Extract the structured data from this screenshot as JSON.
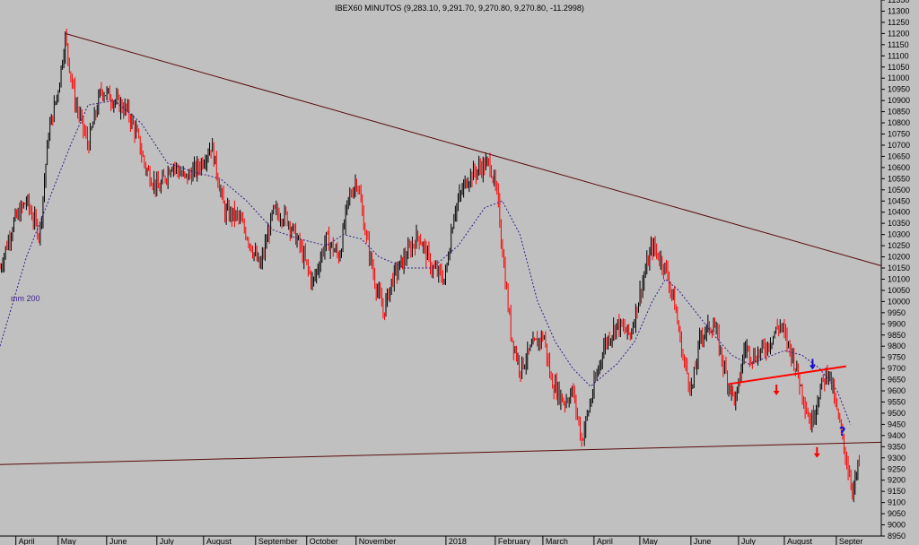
{
  "chart_data": {
    "type": "candlestick",
    "title": "IBEX60 MINUTOS (9,283.10, 9,291.70, 9,270.80, 9,270.80, -11.2998)",
    "ma_label": "mm 200",
    "y_ticks": [
      8950,
      9000,
      9050,
      9100,
      9150,
      9200,
      9250,
      9300,
      9350,
      9400,
      9450,
      9500,
      9550,
      9600,
      9650,
      9700,
      9750,
      9800,
      9850,
      9900,
      9950,
      10000,
      10050,
      10100,
      10150,
      10200,
      10250,
      10300,
      10350,
      10400,
      10450,
      10500,
      10550,
      10600,
      10650,
      10700,
      10750,
      10800,
      10850,
      10900,
      10950,
      11000,
      11050,
      11100,
      11150,
      11200,
      11250,
      11300,
      11350
    ],
    "ylim": [
      8950,
      11350
    ],
    "x_labels": [
      "April",
      "May",
      "June",
      "July",
      "August",
      "September",
      "October",
      "November",
      "2018",
      "February",
      "March",
      "April",
      "May",
      "June",
      "July",
      "August",
      "Septer"
    ],
    "x_positions": [
      0.018,
      0.066,
      0.121,
      0.178,
      0.231,
      0.29,
      0.348,
      0.404,
      0.506,
      0.562,
      0.616,
      0.674,
      0.726,
      0.784,
      0.838,
      0.89,
      0.949
    ],
    "price_path": [
      [
        0,
        10150
      ],
      [
        0.015,
        10350
      ],
      [
        0.03,
        10450
      ],
      [
        0.045,
        10300
      ],
      [
        0.055,
        10750
      ],
      [
        0.066,
        10950
      ],
      [
        0.074,
        11180
      ],
      [
        0.085,
        10900
      ],
      [
        0.1,
        10700
      ],
      [
        0.115,
        10950
      ],
      [
        0.13,
        10900
      ],
      [
        0.145,
        10850
      ],
      [
        0.155,
        10750
      ],
      [
        0.165,
        10600
      ],
      [
        0.18,
        10500
      ],
      [
        0.195,
        10620
      ],
      [
        0.21,
        10550
      ],
      [
        0.225,
        10600
      ],
      [
        0.24,
        10700
      ],
      [
        0.255,
        10400
      ],
      [
        0.27,
        10380
      ],
      [
        0.28,
        10300
      ],
      [
        0.295,
        10150
      ],
      [
        0.31,
        10400
      ],
      [
        0.325,
        10380
      ],
      [
        0.34,
        10250
      ],
      [
        0.355,
        10080
      ],
      [
        0.37,
        10280
      ],
      [
        0.385,
        10200
      ],
      [
        0.395,
        10450
      ],
      [
        0.405,
        10550
      ],
      [
        0.415,
        10300
      ],
      [
        0.425,
        10100
      ],
      [
        0.435,
        9950
      ],
      [
        0.445,
        10100
      ],
      [
        0.46,
        10200
      ],
      [
        0.475,
        10300
      ],
      [
        0.49,
        10150
      ],
      [
        0.505,
        10100
      ],
      [
        0.515,
        10400
      ],
      [
        0.53,
        10550
      ],
      [
        0.545,
        10600
      ],
      [
        0.556,
        10620
      ],
      [
        0.565,
        10450
      ],
      [
        0.572,
        10150
      ],
      [
        0.58,
        9850
      ],
      [
        0.59,
        9700
      ],
      [
        0.605,
        9800
      ],
      [
        0.617,
        9850
      ],
      [
        0.625,
        9650
      ],
      [
        0.64,
        9550
      ],
      [
        0.65,
        9600
      ],
      [
        0.66,
        9380
      ],
      [
        0.67,
        9550
      ],
      [
        0.685,
        9800
      ],
      [
        0.7,
        9900
      ],
      [
        0.715,
        9850
      ],
      [
        0.73,
        10100
      ],
      [
        0.74,
        10250
      ],
      [
        0.755,
        10150
      ],
      [
        0.765,
        10000
      ],
      [
        0.775,
        9750
      ],
      [
        0.785,
        9600
      ],
      [
        0.795,
        9850
      ],
      [
        0.81,
        9900
      ],
      [
        0.825,
        9650
      ],
      [
        0.835,
        9550
      ],
      [
        0.845,
        9800
      ],
      [
        0.855,
        9750
      ],
      [
        0.87,
        9800
      ],
      [
        0.885,
        9900
      ],
      [
        0.9,
        9750
      ],
      [
        0.91,
        9600
      ],
      [
        0.92,
        9450
      ],
      [
        0.93,
        9600
      ],
      [
        0.94,
        9700
      ],
      [
        0.95,
        9500
      ],
      [
        0.96,
        9300
      ],
      [
        0.968,
        9150
      ],
      [
        0.975,
        9280
      ]
    ],
    "moving_average_mm200": [
      [
        0,
        9800
      ],
      [
        0.03,
        10200
      ],
      [
        0.06,
        10500
      ],
      [
        0.08,
        10700
      ],
      [
        0.1,
        10880
      ],
      [
        0.13,
        10900
      ],
      [
        0.16,
        10800
      ],
      [
        0.19,
        10620
      ],
      [
        0.22,
        10580
      ],
      [
        0.25,
        10550
      ],
      [
        0.28,
        10450
      ],
      [
        0.31,
        10320
      ],
      [
        0.34,
        10280
      ],
      [
        0.37,
        10250
      ],
      [
        0.39,
        10300
      ],
      [
        0.41,
        10280
      ],
      [
        0.43,
        10200
      ],
      [
        0.46,
        10150
      ],
      [
        0.49,
        10150
      ],
      [
        0.52,
        10250
      ],
      [
        0.55,
        10420
      ],
      [
        0.57,
        10450
      ],
      [
        0.59,
        10300
      ],
      [
        0.61,
        10000
      ],
      [
        0.63,
        9820
      ],
      [
        0.65,
        9700
      ],
      [
        0.67,
        9620
      ],
      [
        0.7,
        9720
      ],
      [
        0.72,
        9820
      ],
      [
        0.74,
        10000
      ],
      [
        0.755,
        10100
      ],
      [
        0.77,
        10050
      ],
      [
        0.79,
        9950
      ],
      [
        0.81,
        9850
      ],
      [
        0.83,
        9760
      ],
      [
        0.85,
        9720
      ],
      [
        0.87,
        9750
      ],
      [
        0.89,
        9780
      ],
      [
        0.91,
        9760
      ],
      [
        0.93,
        9700
      ],
      [
        0.95,
        9600
      ],
      [
        0.965,
        9450
      ]
    ],
    "trendlines": [
      {
        "from": [
          0.074,
          11200
        ],
        "to": [
          1.0,
          10160
        ],
        "color": "#5a0a0a"
      },
      {
        "from": [
          0.0,
          9270
        ],
        "to": [
          1.0,
          9370
        ],
        "color": "#5a0a0a"
      },
      {
        "from": [
          0.826,
          9630
        ],
        "to": [
          0.96,
          9710
        ],
        "color": "#ff0000"
      }
    ],
    "annotations": [
      {
        "type": "arrow-down",
        "at": [
          0.881,
          9600
        ],
        "color": "#ff0000"
      },
      {
        "type": "arrow-down",
        "at": [
          0.922,
          9715
        ],
        "color": "#1010d0"
      },
      {
        "type": "arrow-down",
        "at": [
          0.927,
          9320
        ],
        "color": "#ff0000"
      },
      {
        "type": "text",
        "text": "?",
        "at": [
          0.952,
          9400
        ],
        "color": "#1010d0"
      }
    ],
    "colors": {
      "background": "#c0c0c0",
      "up": "#000000",
      "down": "#ff0000",
      "ma": "#3a1f8a"
    },
    "grid": false
  }
}
